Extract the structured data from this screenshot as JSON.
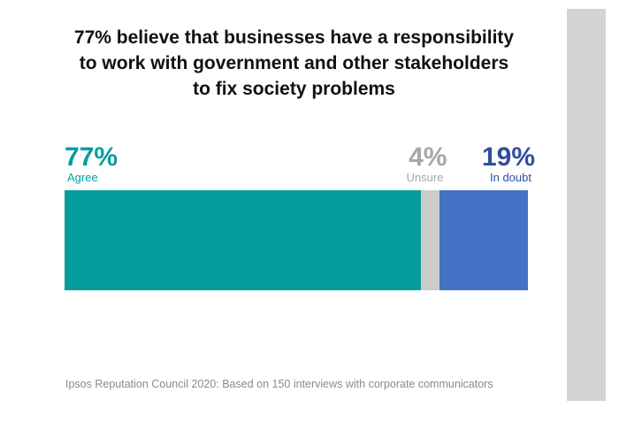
{
  "title_lines": [
    "77% believe that businesses have a responsibility",
    "to work with government and other stakeholders",
    "to fix society problems"
  ],
  "source": "Ipsos Reputation Council 2020: Based on 150 interviews with corporate communicators",
  "chart_data": {
    "type": "bar",
    "orientation": "horizontal-stacked",
    "title": "77% believe that businesses have a responsibility to work with government and other stakeholders to fix society problems",
    "categories": [
      "Agree",
      "Unsure",
      "In doubt"
    ],
    "values": [
      77,
      4,
      19
    ],
    "value_labels": [
      "77%",
      "4%",
      "19%"
    ],
    "colors": [
      "#069c9b",
      "#cccccc",
      "#4472c4"
    ],
    "label_colors": [
      "#069c9b",
      "#a6a6a6",
      "#2f4f9e"
    ],
    "total": 100
  }
}
